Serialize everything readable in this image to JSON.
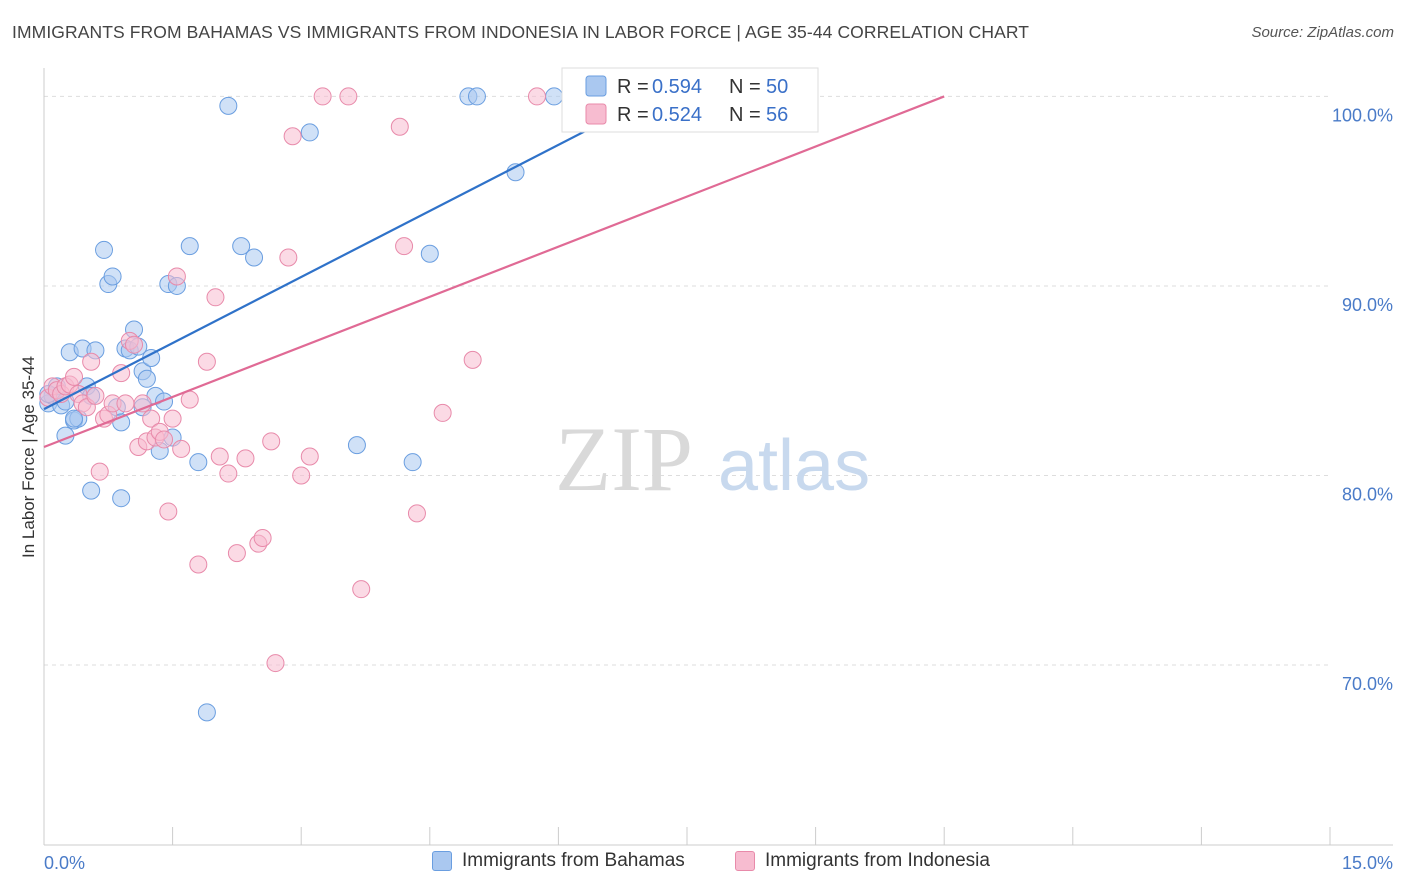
{
  "chart_data": {
    "type": "scatter",
    "title": "IMMIGRANTS FROM BAHAMAS VS IMMIGRANTS FROM INDONESIA IN LABOR FORCE | AGE 35-44 CORRELATION CHART",
    "source": "Source: ZipAtlas.com",
    "ylabel": "In Labor Force | Age 35-44",
    "xlabel": "",
    "x_tick_labels": [
      "0.0%",
      "15.0%"
    ],
    "y_tick_labels": [
      "100.0%",
      "90.0%",
      "80.0%",
      "70.0%"
    ],
    "y_ticks": [
      100,
      90,
      80,
      70
    ],
    "xlim": [
      0,
      15
    ],
    "ylim": [
      60.5,
      101.5
    ],
    "watermark": {
      "part1": "ZIP",
      "part2": "atlas"
    },
    "colors": {
      "bahamas_fill": "#aac8f0",
      "bahamas_stroke": "#6a9ee0",
      "bahamas_line": "#2f72c9",
      "indonesia_fill": "#f7bcd0",
      "indonesia_stroke": "#e88aaa",
      "indonesia_line": "#e06a95",
      "grid": "#dddddd",
      "tick_text": "#4a7bc8"
    },
    "legend": [
      {
        "r_label": "R =",
        "r_value": "0.594",
        "n_label": "N =",
        "n_value": "50"
      },
      {
        "r_label": "R =",
        "r_value": "0.524",
        "n_label": "N =",
        "n_value": "56"
      }
    ],
    "series": [
      {
        "name": "Immigrants from Bahamas",
        "trend": {
          "x": [
            0.0,
            7.1
          ],
          "y": [
            83.5,
            100.0
          ]
        },
        "points": [
          [
            0.05,
            83.8
          ],
          [
            0.1,
            84.2
          ],
          [
            0.15,
            84.7
          ],
          [
            0.2,
            83.7
          ],
          [
            0.25,
            82.1
          ],
          [
            0.3,
            86.5
          ],
          [
            0.35,
            82.9
          ],
          [
            0.4,
            83.0
          ],
          [
            0.45,
            86.7
          ],
          [
            0.5,
            84.7
          ],
          [
            0.55,
            84.2
          ],
          [
            0.6,
            86.6
          ],
          [
            0.7,
            91.9
          ],
          [
            0.75,
            90.1
          ],
          [
            0.8,
            90.5
          ],
          [
            0.85,
            83.6
          ],
          [
            0.9,
            82.8
          ],
          [
            0.95,
            86.7
          ],
          [
            1.0,
            86.6
          ],
          [
            1.05,
            87.7
          ],
          [
            1.1,
            86.8
          ],
          [
            1.15,
            85.5
          ],
          [
            1.2,
            85.1
          ],
          [
            1.25,
            86.2
          ],
          [
            1.3,
            84.2
          ],
          [
            1.35,
            81.3
          ],
          [
            1.4,
            83.9
          ],
          [
            1.45,
            90.1
          ],
          [
            1.5,
            82.0
          ],
          [
            1.55,
            90.0
          ],
          [
            1.7,
            92.1
          ],
          [
            1.8,
            80.7
          ],
          [
            1.9,
            67.5
          ],
          [
            2.15,
            99.5
          ],
          [
            2.3,
            92.1
          ],
          [
            2.45,
            91.5
          ],
          [
            3.1,
            98.1
          ],
          [
            3.65,
            81.6
          ],
          [
            4.3,
            80.7
          ],
          [
            4.5,
            91.7
          ],
          [
            4.95,
            100.0
          ],
          [
            5.05,
            100.0
          ],
          [
            5.5,
            96.0
          ],
          [
            5.95,
            100.0
          ],
          [
            0.05,
            84.3
          ],
          [
            0.25,
            83.9
          ],
          [
            0.55,
            79.2
          ],
          [
            0.9,
            78.8
          ],
          [
            0.35,
            83.0
          ],
          [
            1.15,
            83.6
          ]
        ]
      },
      {
        "name": "Immigrants from Indonesia",
        "trend": {
          "x": [
            0.0,
            10.5
          ],
          "y": [
            81.5,
            100.0
          ]
        },
        "points": [
          [
            0.05,
            84.1
          ],
          [
            0.1,
            84.7
          ],
          [
            0.15,
            84.5
          ],
          [
            0.2,
            84.3
          ],
          [
            0.25,
            84.7
          ],
          [
            0.3,
            84.8
          ],
          [
            0.35,
            85.2
          ],
          [
            0.4,
            84.3
          ],
          [
            0.45,
            83.8
          ],
          [
            0.5,
            83.6
          ],
          [
            0.55,
            86.0
          ],
          [
            0.6,
            84.2
          ],
          [
            0.65,
            80.2
          ],
          [
            0.7,
            83.0
          ],
          [
            0.75,
            83.2
          ],
          [
            0.8,
            83.8
          ],
          [
            0.9,
            85.4
          ],
          [
            0.95,
            83.8
          ],
          [
            1.0,
            87.1
          ],
          [
            1.05,
            86.9
          ],
          [
            1.1,
            81.5
          ],
          [
            1.15,
            83.8
          ],
          [
            1.2,
            81.8
          ],
          [
            1.25,
            83.0
          ],
          [
            1.3,
            82.0
          ],
          [
            1.35,
            82.3
          ],
          [
            1.4,
            81.9
          ],
          [
            1.45,
            78.1
          ],
          [
            1.5,
            83.0
          ],
          [
            1.55,
            90.5
          ],
          [
            1.6,
            81.4
          ],
          [
            1.7,
            84.0
          ],
          [
            1.8,
            75.3
          ],
          [
            1.9,
            86.0
          ],
          [
            2.0,
            89.4
          ],
          [
            2.05,
            81.0
          ],
          [
            2.15,
            80.1
          ],
          [
            2.25,
            75.9
          ],
          [
            2.35,
            80.9
          ],
          [
            2.5,
            76.4
          ],
          [
            2.55,
            76.7
          ],
          [
            2.65,
            81.8
          ],
          [
            2.7,
            70.1
          ],
          [
            2.85,
            91.5
          ],
          [
            2.9,
            97.9
          ],
          [
            3.0,
            80.0
          ],
          [
            3.1,
            81.0
          ],
          [
            3.25,
            100.0
          ],
          [
            3.55,
            100.0
          ],
          [
            3.7,
            74.0
          ],
          [
            4.15,
            98.4
          ],
          [
            4.2,
            92.1
          ],
          [
            4.35,
            78.0
          ],
          [
            4.65,
            83.3
          ],
          [
            5.0,
            86.1
          ],
          [
            5.75,
            100.0
          ]
        ]
      }
    ]
  },
  "legend_bottom": [
    "Immigrants from Bahamas",
    "Immigrants from Indonesia"
  ]
}
